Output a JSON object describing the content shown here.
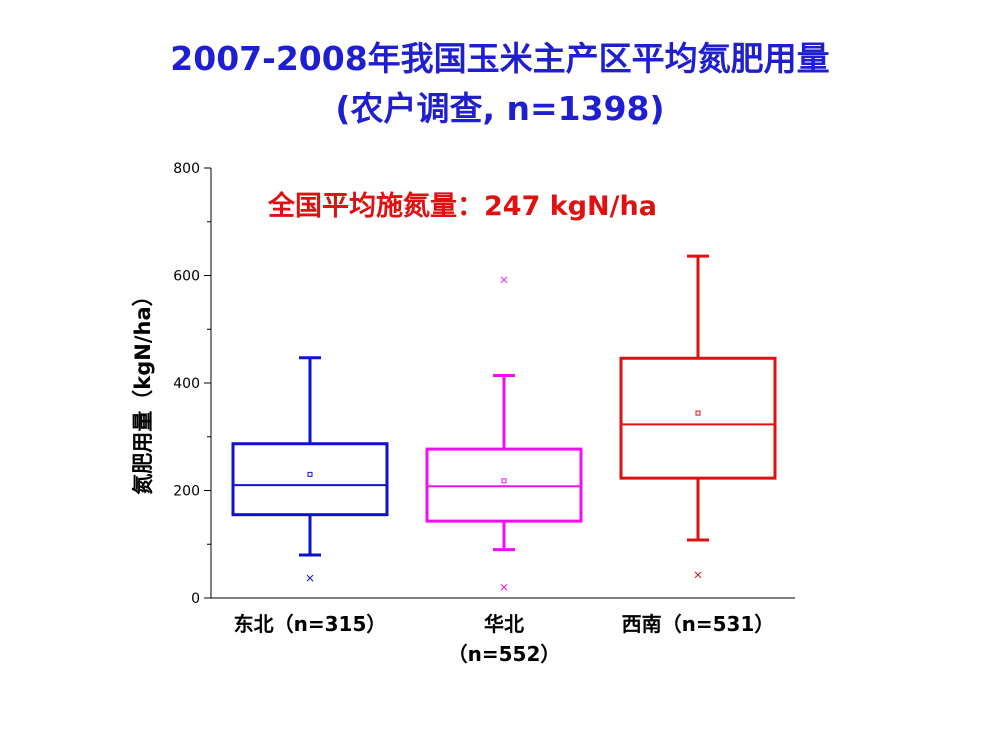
{
  "header": {
    "title_line1": "2007-2008年我国玉米主产区平均氮肥用量",
    "title_line2": "(农户调查, n=1398)"
  },
  "chart_data": {
    "type": "box",
    "ylabel": "氮肥用量（kgN/ha）",
    "xlabel": "",
    "ylim": [
      0,
      800
    ],
    "yticks": [
      0,
      200,
      400,
      600,
      800
    ],
    "grid": false,
    "annotation": "全国平均施氮量：247 kgN/ha",
    "categories": [
      {
        "label": "东北（n=315）",
        "label_line2": ""
      },
      {
        "label": "华北",
        "label_line2": "（n=552）"
      },
      {
        "label": "西南（n=531）",
        "label_line2": ""
      }
    ],
    "boxes": [
      {
        "name": "东北",
        "color": "#1010d0",
        "whisker_low": 80,
        "q1": 155,
        "median": 210,
        "q3": 287,
        "whisker_high": 447,
        "mean": 230,
        "min_outlier": 37,
        "max_outlier": null
      },
      {
        "name": "华北",
        "color": "#ee10ee",
        "whisker_low": 90,
        "q1": 143,
        "median": 208,
        "q3": 277,
        "whisker_high": 414,
        "mean": 218,
        "min_outlier": 20,
        "max_outlier": 592
      },
      {
        "name": "西南",
        "color": "#e01010",
        "whisker_low": 108,
        "q1": 223,
        "median": 323,
        "q3": 446,
        "whisker_high": 636,
        "mean": 344,
        "min_outlier": 43,
        "max_outlier": null
      }
    ]
  }
}
